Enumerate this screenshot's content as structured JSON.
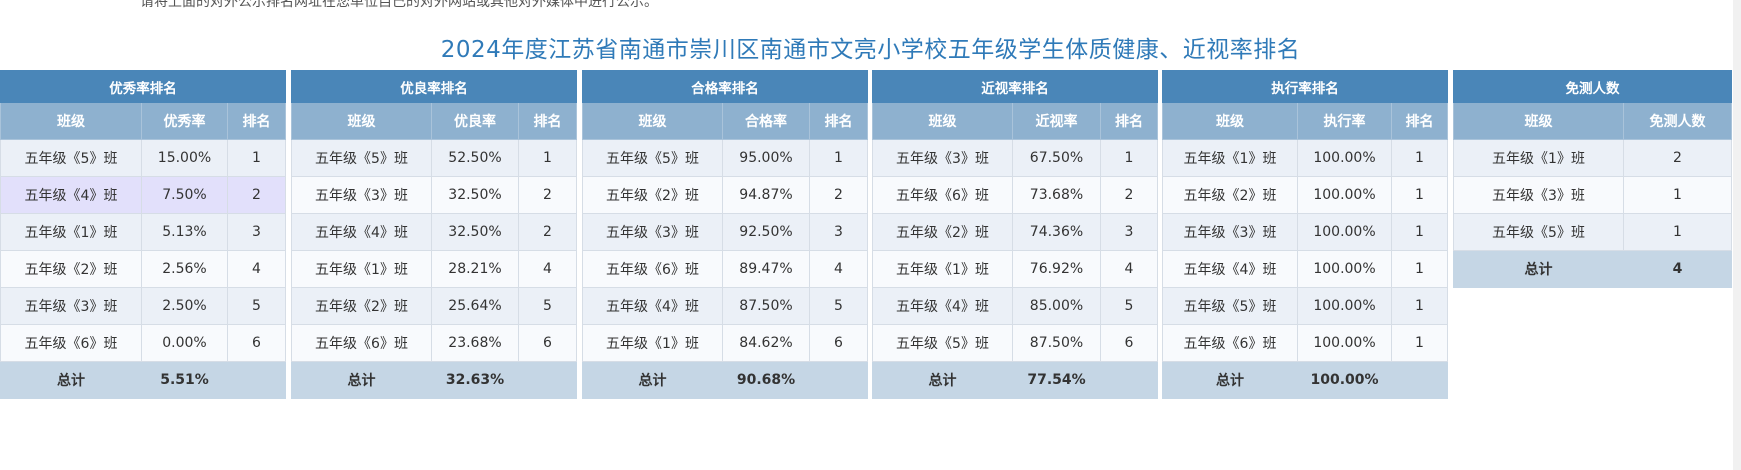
{
  "notice": "请将上面的对外公示排名网址在您单位自己的对外网站或其他对外媒体中进行公示。",
  "title": "2024年度江苏省南通市崇川区南通市文亮小学校五年级学生体质健康、近视率排名",
  "tables": [
    {
      "heading": "优秀率排名",
      "columns": [
        "班级",
        "优秀率",
        "排名"
      ],
      "rows": [
        [
          "五年级《5》班",
          "15.00%",
          "1"
        ],
        [
          "五年级《4》班",
          "7.50%",
          "2"
        ],
        [
          "五年级《1》班",
          "5.13%",
          "3"
        ],
        [
          "五年级《2》班",
          "2.56%",
          "4"
        ],
        [
          "五年级《3》班",
          "2.50%",
          "5"
        ],
        [
          "五年级《6》班",
          "0.00%",
          "6"
        ]
      ],
      "total": [
        "总计",
        "5.51%",
        ""
      ]
    },
    {
      "heading": "优良率排名",
      "columns": [
        "班级",
        "优良率",
        "排名"
      ],
      "rows": [
        [
          "五年级《5》班",
          "52.50%",
          "1"
        ],
        [
          "五年级《3》班",
          "32.50%",
          "2"
        ],
        [
          "五年级《4》班",
          "32.50%",
          "2"
        ],
        [
          "五年级《1》班",
          "28.21%",
          "4"
        ],
        [
          "五年级《2》班",
          "25.64%",
          "5"
        ],
        [
          "五年级《6》班",
          "23.68%",
          "6"
        ]
      ],
      "total": [
        "总计",
        "32.63%",
        ""
      ]
    },
    {
      "heading": "合格率排名",
      "columns": [
        "班级",
        "合格率",
        "排名"
      ],
      "rows": [
        [
          "五年级《5》班",
          "95.00%",
          "1"
        ],
        [
          "五年级《2》班",
          "94.87%",
          "2"
        ],
        [
          "五年级《3》班",
          "92.50%",
          "3"
        ],
        [
          "五年级《6》班",
          "89.47%",
          "4"
        ],
        [
          "五年级《4》班",
          "87.50%",
          "5"
        ],
        [
          "五年级《1》班",
          "84.62%",
          "6"
        ]
      ],
      "total": [
        "总计",
        "90.68%",
        ""
      ]
    },
    {
      "heading": "近视率排名",
      "columns": [
        "班级",
        "近视率",
        "排名"
      ],
      "rows": [
        [
          "五年级《3》班",
          "67.50%",
          "1"
        ],
        [
          "五年级《6》班",
          "73.68%",
          "2"
        ],
        [
          "五年级《2》班",
          "74.36%",
          "3"
        ],
        [
          "五年级《1》班",
          "76.92%",
          "4"
        ],
        [
          "五年级《4》班",
          "85.00%",
          "5"
        ],
        [
          "五年级《5》班",
          "87.50%",
          "6"
        ]
      ],
      "total": [
        "总计",
        "77.54%",
        ""
      ]
    },
    {
      "heading": "执行率排名",
      "columns": [
        "班级",
        "执行率",
        "排名"
      ],
      "rows": [
        [
          "五年级《1》班",
          "100.00%",
          "1"
        ],
        [
          "五年级《2》班",
          "100.00%",
          "1"
        ],
        [
          "五年级《3》班",
          "100.00%",
          "1"
        ],
        [
          "五年级《4》班",
          "100.00%",
          "1"
        ],
        [
          "五年级《5》班",
          "100.00%",
          "1"
        ],
        [
          "五年级《6》班",
          "100.00%",
          "1"
        ]
      ],
      "total": [
        "总计",
        "100.00%",
        ""
      ]
    },
    {
      "heading": "免测人数",
      "columns": [
        "班级",
        "免测人数"
      ],
      "rows": [
        [
          "五年级《1》班",
          "2"
        ],
        [
          "五年级《3》班",
          "1"
        ],
        [
          "五年级《5》班",
          "1"
        ]
      ],
      "total": [
        "总计",
        "4"
      ]
    }
  ],
  "colors": {
    "title": "#2f7ab8",
    "group_header_bg": "#4a86b8",
    "column_header_bg": "#8eb1cf",
    "row_odd_bg": "#ebf0f7",
    "row_even_bg": "#f8fafd",
    "row_highlight_bg": "#e2e0fb",
    "total_bg": "#c5d6e5"
  }
}
